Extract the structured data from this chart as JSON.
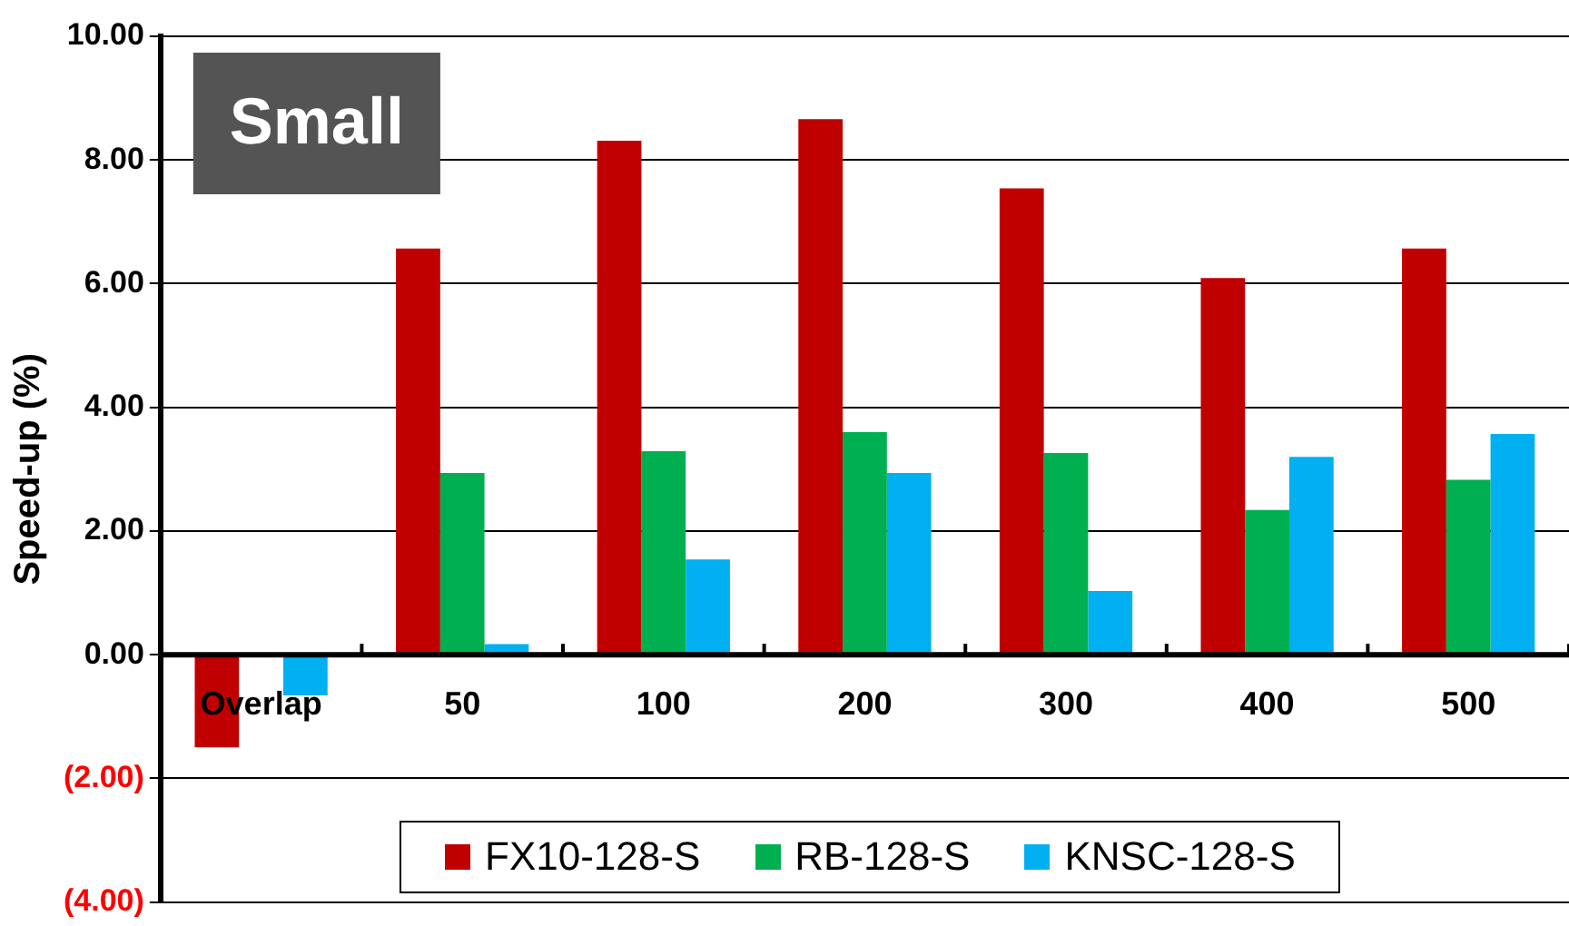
{
  "chart_data": {
    "type": "bar",
    "title": "Small",
    "ylabel": "Speed-up (%)",
    "categories": [
      "Overlap",
      "50",
      "100",
      "200",
      "300",
      "400",
      "500"
    ],
    "series": [
      {
        "name": "FX10-128-S",
        "color": "#c00000",
        "values": [
          -1.5,
          6.57,
          8.31,
          8.66,
          7.54,
          6.09,
          6.57
        ]
      },
      {
        "name": "RB-128-S",
        "color": "#00b050",
        "values": [
          0.03,
          2.94,
          3.29,
          3.6,
          3.26,
          2.34,
          2.83
        ]
      },
      {
        "name": "KNSC-128-S",
        "color": "#00b0f0",
        "values": [
          -0.66,
          0.17,
          1.54,
          2.94,
          1.03,
          3.2,
          3.57
        ]
      }
    ],
    "ylim": [
      -4,
      10
    ],
    "yticks": [
      {
        "value": -4,
        "label": "(4.00)"
      },
      {
        "value": -2,
        "label": "(2.00)"
      },
      {
        "value": 0,
        "label": "0.00"
      },
      {
        "value": 2,
        "label": "2.00"
      },
      {
        "value": 4,
        "label": "4.00"
      },
      {
        "value": 6,
        "label": "6.00"
      },
      {
        "value": 8,
        "label": "8.00"
      },
      {
        "value": 10,
        "label": "10.00"
      }
    ],
    "grid": "y",
    "legend": "bottom"
  }
}
